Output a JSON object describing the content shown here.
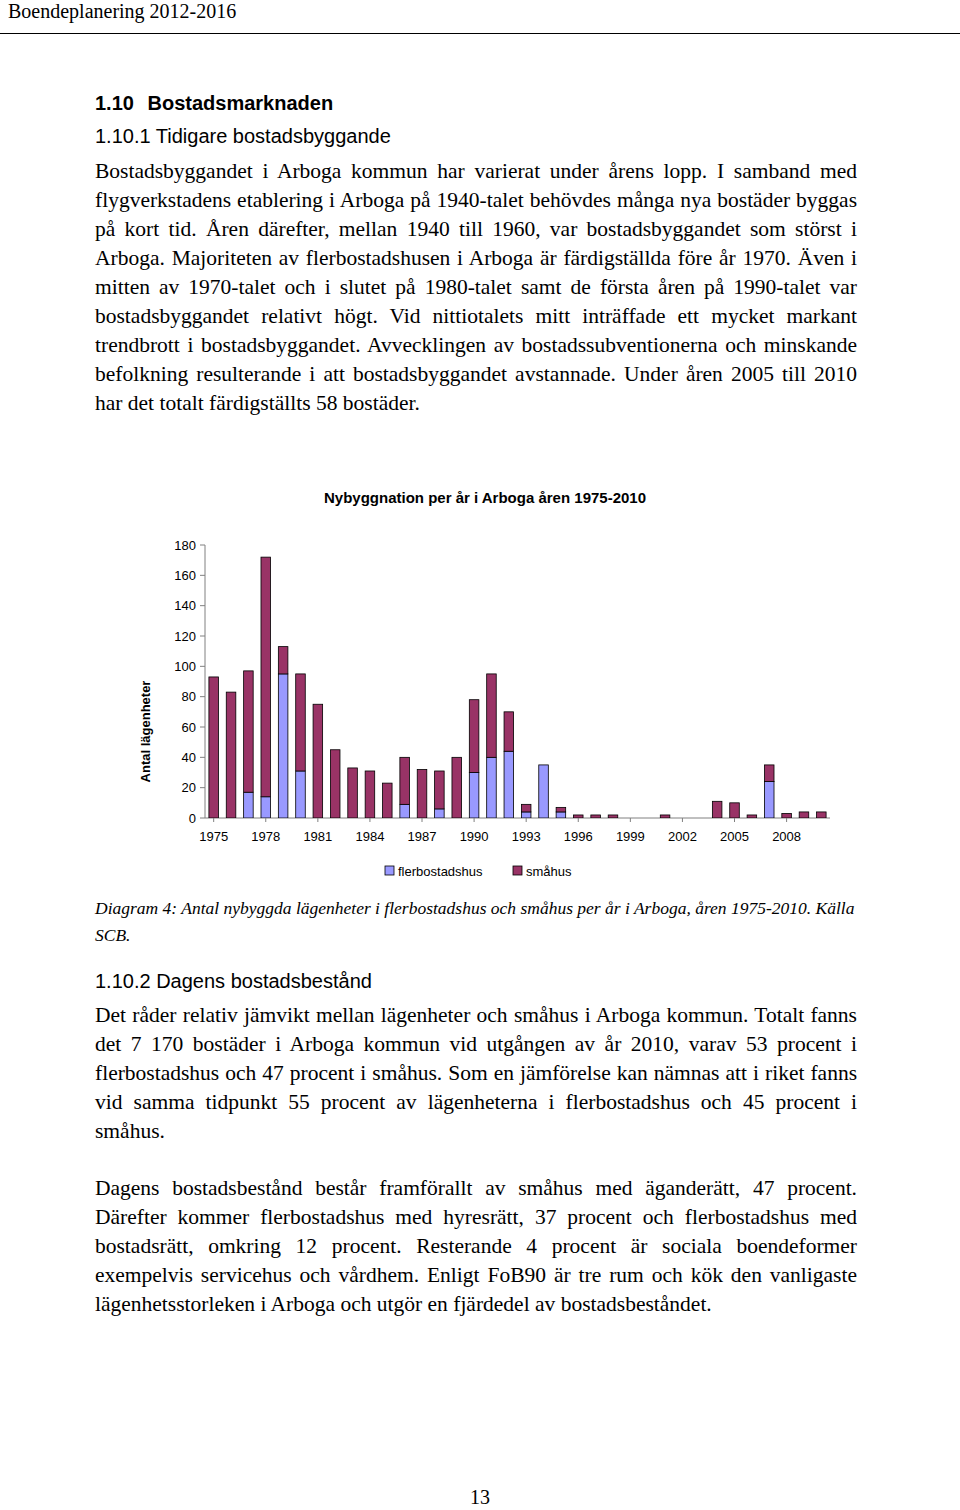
{
  "header": {
    "title": "Boendeplanering 2012-2016"
  },
  "section": {
    "heading": "1.10 Bostadsmarknaden"
  },
  "subsection_1": {
    "heading": "1.10.1 Tidigare bostadsbyggande",
    "paragraphs": [
      "Bostadsbyggandet i Arboga kommun har varierat under årens lopp. I samband med flygverkstadens etablering i Arboga på 1940-talet behövdes många nya bostäder byggas på kort tid. Åren därefter, mellan 1940 till 1960, var bostadsbyggandet som störst i Arboga. Majoriteten av flerbostadshusen i Arboga är färdigställda före år 1970. Även i mitten av 1970-talet och i slutet på 1980-talet samt de första åren på 1990-talet var bostadsbyggandet relativt högt. Vid nittiotalets mitt inträffade ett mycket markant trendbrott i bostadsbyggandet. Avvecklingen av bostadssubventionerna och minskande befolkning resulterande i att bostadsbyggandet avstannade. Under åren 2005 till 2010 har det totalt färdigställts 58 bostäder."
    ]
  },
  "chart_data": {
    "type": "bar",
    "stacked": true,
    "title": "Nybyggnation per år i Arboga åren 1975-2010",
    "y_label": "Antal lägenheter",
    "categories": [
      1975,
      null,
      null,
      1978,
      null,
      null,
      1981,
      null,
      null,
      1984,
      null,
      null,
      1987,
      null,
      null,
      1990,
      null,
      null,
      1993,
      null,
      null,
      1996,
      null,
      null,
      1999,
      null,
      null,
      2002,
      null,
      null,
      2005,
      null,
      null,
      2008,
      null,
      null
    ],
    "series": [
      {
        "name": "flerbostadshus",
        "color": "#9999ff",
        "values": [
          0,
          0,
          17,
          14,
          95,
          31,
          0,
          0,
          0,
          0,
          0,
          9,
          0,
          6,
          0,
          30,
          40,
          44,
          4,
          35,
          4,
          0,
          0,
          0,
          0,
          0,
          0,
          0,
          0,
          0,
          0,
          0,
          24,
          0,
          0,
          0
        ]
      },
      {
        "name": "småhus",
        "color": "#993366",
        "values": [
          93,
          83,
          80,
          158,
          18,
          64,
          75,
          45,
          33,
          31,
          23,
          31,
          32,
          25,
          40,
          48,
          55,
          26,
          5,
          0,
          3,
          2,
          2,
          2,
          0,
          0,
          2,
          0,
          0,
          11,
          10,
          2,
          11,
          3,
          4,
          4
        ]
      }
    ],
    "ylim": [
      0,
      180
    ],
    "yticks": [
      0,
      20,
      40,
      60,
      80,
      100,
      120,
      140,
      160,
      180
    ],
    "grid": false,
    "legend": "bottom"
  },
  "caption": "Diagram 4: Antal nybyggda lägenheter i flerbostadshus och småhus per år i Arboga, åren 1975-2010. Källa SCB.",
  "subsection_2": {
    "heading": "1.10.2 Dagens bostadsbestånd",
    "paragraphs": [
      "Det råder relativ jämvikt mellan lägenheter och småhus i Arboga kommun. Totalt fanns det 7 170 bostäder i Arboga kommun vid utgången av år 2010, varav 53 procent i flerbostadshus och 47 procent i småhus. Som en jämförelse kan nämnas att i riket fanns vid samma tidpunkt 55 procent av lägenheterna i flerbostadshus och 45 procent i småhus.",
      "Dagens bostadsbestånd består framförallt av småhus med äganderätt, 47 procent. Därefter kommer flerbostadshus med hyresrätt, 37 procent och flerbostadshus med bostadsrätt, omkring 12 procent. Resterande 4 procent är sociala boendeformer exempelvis servicehus och vårdhem. Enligt FoB90 är tre rum och kök den vanligaste lägenhetsstorleken i Arboga och utgör en fjärdedel av bostadsbeståndet."
    ]
  },
  "footer": {
    "page": "13"
  }
}
